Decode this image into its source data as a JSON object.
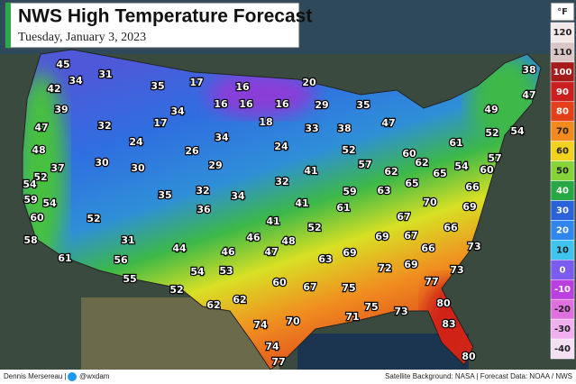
{
  "header": {
    "title": "NWS High Temperature Forecast",
    "subtitle": "Tuesday, January 3, 2023"
  },
  "temperatures": [
    45,
    31,
    42,
    34,
    35,
    17,
    16,
    20,
    38,
    47,
    39,
    16,
    16,
    16,
    29,
    35,
    34,
    18,
    49,
    32,
    17,
    33,
    38,
    47,
    52,
    54,
    47,
    24,
    34,
    24,
    52,
    60,
    62,
    61,
    48,
    26,
    57,
    30,
    37,
    30,
    29,
    41,
    57,
    62,
    65,
    54,
    60,
    52,
    54,
    32,
    65,
    66,
    59,
    54,
    35,
    32,
    34,
    41,
    59,
    63,
    70,
    69,
    60,
    52,
    36,
    61,
    67,
    41,
    52,
    66,
    58,
    31,
    46,
    48,
    69,
    67,
    73,
    44,
    46,
    47,
    69,
    66,
    61,
    56,
    63,
    69,
    54,
    53,
    72,
    73,
    55,
    60,
    67,
    75,
    77,
    52,
    62,
    80,
    62,
    71,
    75,
    73,
    70,
    74,
    83,
    74,
    77,
    80
  ],
  "legend": {
    "unit": "°F",
    "ticks": [
      120,
      110,
      100,
      90,
      80,
      70,
      60,
      50,
      40,
      30,
      20,
      10,
      0,
      -10,
      -20,
      -30,
      -40
    ],
    "colors": [
      "#f3e9e9",
      "#d9c6c6",
      "#a61c1c",
      "#cc1f1f",
      "#e6401a",
      "#f28a1e",
      "#f2d21e",
      "#86d43a",
      "#27a845",
      "#2a62d9",
      "#2f86ef",
      "#3fc3ef",
      "#7a5cf0",
      "#bb3fe0",
      "#e06fe0",
      "#f0b0f0",
      "#f3e0f3"
    ]
  },
  "footer": {
    "author": "Dennis Mersereau |",
    "handle": "@wxdam",
    "credit": "Satellite Background: NASA | Forecast Data: NOAA / NWS"
  }
}
